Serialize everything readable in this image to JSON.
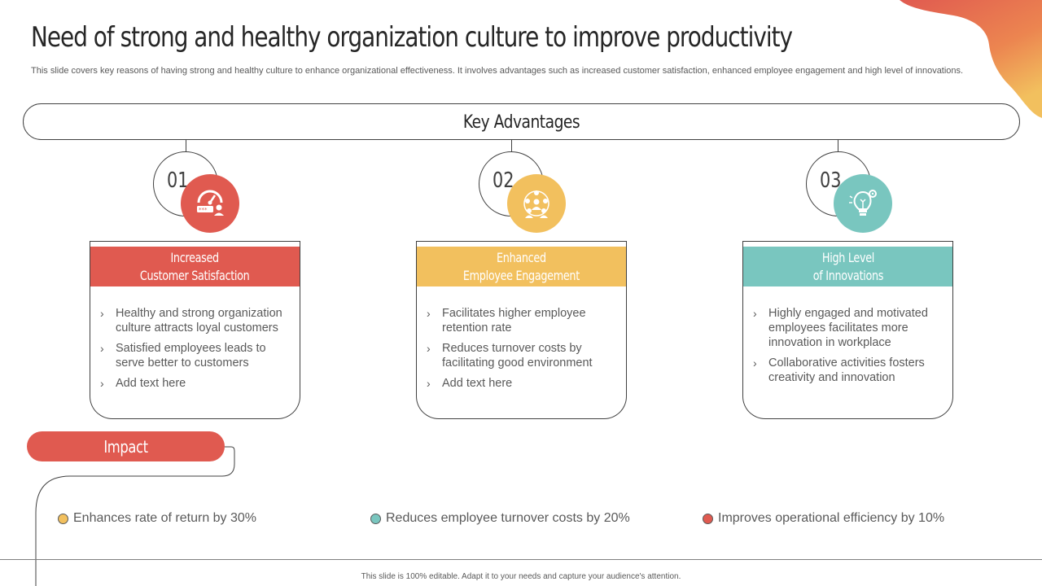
{
  "slide": {
    "title": "Need of strong and healthy organization culture to improve productivity",
    "subtitle": "This slide covers key reasons of having strong and healthy culture to enhance organizational effectiveness. It involves advantages such as increased customer satisfaction, enhanced employee engagement and high level of innovations.",
    "banner_label": "Key Advantages",
    "advantages": [
      {
        "number": "01",
        "icon": "customer-satisfaction-gauge-icon",
        "color": "#e05a50",
        "heading": "Increased\nCustomer Satisfaction",
        "points": [
          "Healthy and strong organization culture attracts loyal customers",
          "Satisfied employees leads to serve better to customers",
          "Add text here"
        ]
      },
      {
        "number": "02",
        "icon": "team-group-icon",
        "color": "#f2c05e",
        "heading": "Enhanced\nEmployee Engagement",
        "points": [
          "Facilitates higher employee retention rate",
          "Reduces turnover costs by facilitating good environment",
          "Add text here"
        ]
      },
      {
        "number": "03",
        "icon": "innovation-lightbulb-icon",
        "color": "#79c6bf",
        "heading": "High Level\nof Innovations",
        "points": [
          "Highly engaged and motivated employees facilitates more innovation in workplace",
          "Collaborative activities fosters creativity and innovation"
        ]
      }
    ],
    "impact": {
      "label": "Impact",
      "items": [
        {
          "text": "Enhances rate of return by 30%",
          "color": "#f2c05e"
        },
        {
          "text": "Reduces employee turnover  costs by 20%",
          "color": "#79c6bf"
        },
        {
          "text": "Improves  operational efficiency by  10%",
          "color": "#e05a50"
        }
      ]
    },
    "footer": "This slide is 100% editable.  Adapt it to your needs and capture your audience's attention."
  }
}
